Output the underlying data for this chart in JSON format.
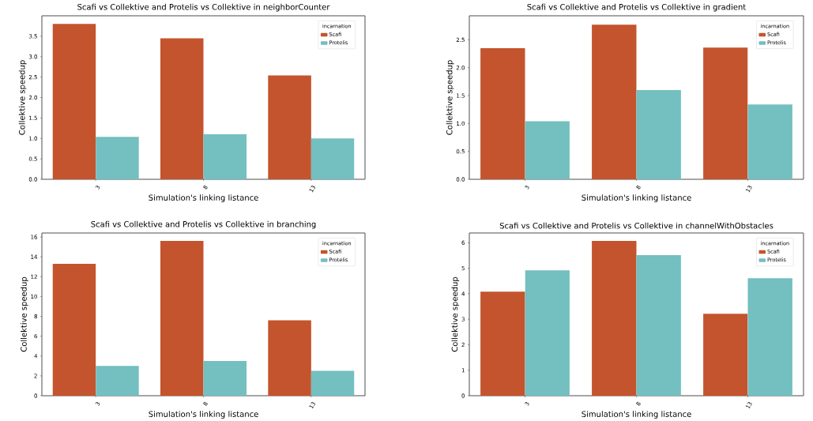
{
  "chart_data": [
    {
      "type": "bar",
      "title": "Scafi vs Collektive and Protelis vs Collektive in neighborCounter",
      "xlabel": "Simulation's linking listance",
      "ylabel": "Collektive speedup",
      "legend_title": "incarnation",
      "legend": "top right",
      "categories": [
        "3",
        "8",
        "13"
      ],
      "series": [
        {
          "name": "Scafi",
          "color": "#c4542d",
          "values": [
            3.8,
            3.45,
            2.54
          ]
        },
        {
          "name": "Protelis",
          "color": "#74bfc0",
          "values": [
            1.04,
            1.1,
            1.0
          ]
        }
      ],
      "ylim": [
        0,
        4.0
      ],
      "yticks": [
        {
          "value": 0,
          "label": "0.0"
        },
        0.5,
        {
          "value": 1,
          "label": "1.0"
        },
        1.5,
        {
          "value": 2,
          "label": "2.0"
        },
        2.5,
        {
          "value": 3,
          "label": "3.0"
        },
        3.5
      ]
    },
    {
      "type": "bar",
      "title": "Scafi vs Collektive and Protelis vs Collektive in gradient",
      "xlabel": "Simulation's linking listance",
      "ylabel": "Collektive speedup",
      "legend_title": "incarnation",
      "legend": "top right",
      "categories": [
        "3",
        "8",
        "13"
      ],
      "series": [
        {
          "name": "Scafi",
          "color": "#c4542d",
          "values": [
            2.35,
            2.77,
            2.36
          ]
        },
        {
          "name": "Protelis",
          "color": "#74bfc0",
          "values": [
            1.04,
            1.6,
            1.34
          ]
        }
      ],
      "ylim": [
        0,
        2.93
      ],
      "yticks": [
        {
          "value": 0,
          "label": "0.0"
        },
        0.5,
        {
          "value": 1,
          "label": "1.0"
        },
        1.5,
        {
          "value": 2,
          "label": "2.0"
        },
        2.5
      ]
    },
    {
      "type": "bar",
      "title": "Scafi vs Collektive and Protelis vs Collektive in branching",
      "xlabel": "Simulation's linking listance",
      "ylabel": "Collektive speedup",
      "legend_title": "incarnation",
      "legend": "top right",
      "categories": [
        "3",
        "8",
        "13"
      ],
      "series": [
        {
          "name": "Scafi",
          "color": "#c4542d",
          "values": [
            13.3,
            15.6,
            7.6
          ]
        },
        {
          "name": "Protelis",
          "color": "#74bfc0",
          "values": [
            3.0,
            3.5,
            2.5
          ]
        }
      ],
      "ylim": [
        0,
        16.4
      ],
      "yticks": [
        0,
        2,
        4,
        6,
        8,
        10,
        12,
        14,
        16
      ]
    },
    {
      "type": "bar",
      "title": "Scafi vs Collektive and Protelis vs Collektive in channelWithObstacles",
      "xlabel": "Simulation's linking listance",
      "ylabel": "Collektive speedup",
      "legend_title": "incarnation",
      "legend": "top right",
      "categories": [
        "3",
        "8",
        "13"
      ],
      "series": [
        {
          "name": "Scafi",
          "color": "#c4542d",
          "values": [
            4.08,
            6.07,
            3.21
          ]
        },
        {
          "name": "Protelis",
          "color": "#74bfc0",
          "values": [
            4.92,
            5.51,
            4.61
          ]
        }
      ],
      "ylim": [
        0,
        6.38
      ],
      "yticks": [
        0,
        1,
        2,
        3,
        4,
        5,
        6
      ]
    }
  ]
}
